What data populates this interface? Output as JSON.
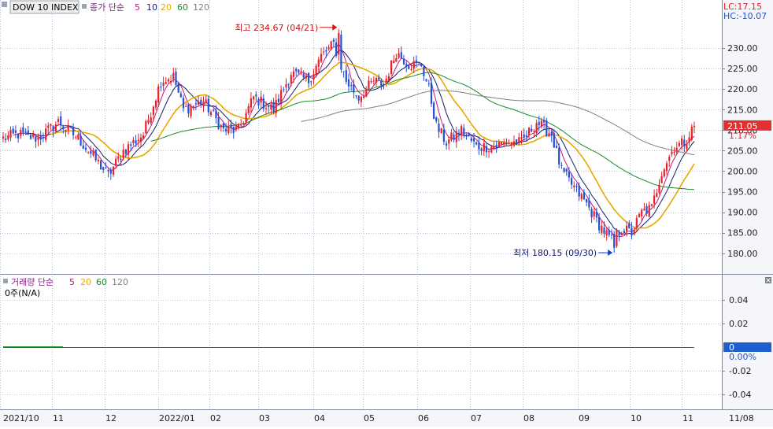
{
  "header": {
    "symbol": "DOW 10 INDEX",
    "price_indicator_label": "종가 단순",
    "ma_periods": [
      "5",
      "10",
      "20",
      "60",
      "120"
    ],
    "lc_label": "LC:17.15",
    "hc_label": "HC:-10.07"
  },
  "volume_header": {
    "label": "거래량 단순",
    "ma_periods": [
      "5",
      "20",
      "60",
      "120"
    ],
    "value_text": "0주(N/A)"
  },
  "colors": {
    "up": "#e8202a",
    "down": "#2450d8",
    "ma5": "#c8147a",
    "ma10": "#1a1a6e",
    "ma20": "#e8a800",
    "ma60": "#1a8c2a",
    "ma120": "#808080",
    "grid": "#b8c4d8",
    "price_badge": "#e03030",
    "volume_badge": "#1e5fd0"
  },
  "chart_data": [
    {
      "type": "candlestick",
      "title": "DOW 10 INDEX",
      "ylim": [
        176.5,
        237.5
      ],
      "y_ticks": [
        180,
        185,
        190,
        195,
        200,
        205,
        210,
        215,
        220,
        225,
        230
      ],
      "y_tick_labels": [
        "180.00",
        "185.00",
        "190.00",
        "195.00",
        "200.00",
        "205.00",
        "210.00",
        "215.00",
        "220.00",
        "225.00",
        "230.00"
      ],
      "x_tick_labels": [
        "2021/10",
        "11",
        "12",
        "2022/01",
        "02",
        "03",
        "04",
        "05",
        "06",
        "07",
        "08",
        "09",
        "10",
        "11",
        "11/08"
      ],
      "anchors": [
        [
          0,
          208.0
        ],
        [
          6,
          209.0
        ],
        [
          14,
          208.0
        ],
        [
          22,
          212.0
        ],
        [
          30,
          208.0
        ],
        [
          38,
          202.0
        ],
        [
          42,
          199.0
        ],
        [
          48,
          205.0
        ],
        [
          56,
          209.0
        ],
        [
          63,
          222.0
        ],
        [
          68,
          223.0
        ],
        [
          72,
          215.0
        ],
        [
          80,
          217.0
        ],
        [
          88,
          210.0
        ],
        [
          94,
          210.0
        ],
        [
          100,
          218.0
        ],
        [
          108,
          215.0
        ],
        [
          115,
          224.0
        ],
        [
          122,
          222.0
        ],
        [
          127,
          228.0
        ],
        [
          132,
          231.0
        ],
        [
          137,
          222.0
        ],
        [
          142,
          218.0
        ],
        [
          148,
          222.0
        ],
        [
          152,
          221.0
        ],
        [
          157,
          229.0
        ],
        [
          162,
          226.0
        ],
        [
          167,
          226.0
        ],
        [
          170,
          220.0
        ],
        [
          173,
          211.0
        ],
        [
          177,
          207.0
        ],
        [
          183,
          210.0
        ],
        [
          189,
          206.0
        ],
        [
          195,
          206.0
        ],
        [
          201,
          207.0
        ],
        [
          207,
          207.0
        ],
        [
          213,
          212.0
        ],
        [
          219,
          209.0
        ],
        [
          223,
          200.0
        ],
        [
          228,
          196.0
        ],
        [
          233,
          192.0
        ],
        [
          238,
          187.0
        ],
        [
          243,
          183.0
        ],
        [
          247,
          186.0
        ],
        [
          251,
          185.0
        ],
        [
          255,
          190.0
        ],
        [
          259,
          191.0
        ],
        [
          263,
          200.0
        ],
        [
          268,
          206.0
        ],
        [
          272,
          207.0
        ],
        [
          275,
          210.0
        ]
      ],
      "high": {
        "value": 234.67,
        "label": "최고 234.67 (04/21)",
        "index": 134
      },
      "low": {
        "value": 180.15,
        "label": "최저 180.15 (09/30)",
        "index": 244
      },
      "last_price": {
        "value": 211.05,
        "label": "211.05",
        "change_label": "1.17%"
      },
      "moving_averages": [
        {
          "period": 5,
          "color": "#c8147a"
        },
        {
          "period": 10,
          "color": "#1a1a6e"
        },
        {
          "period": 20,
          "color": "#e8a800"
        },
        {
          "period": 60,
          "color": "#1a8c2a"
        },
        {
          "period": 120,
          "color": "#808080"
        }
      ]
    },
    {
      "type": "bar",
      "title": "거래량",
      "ylim": [
        -0.05,
        0.05
      ],
      "y_ticks": [
        0.04,
        0.02,
        0,
        -0.02,
        -0.04
      ],
      "y_tick_labels": [
        "0.04",
        "0.02",
        "0",
        "-0.02",
        "-0.04"
      ],
      "last_value": {
        "label": "0",
        "change_label": "0.00%"
      }
    }
  ]
}
